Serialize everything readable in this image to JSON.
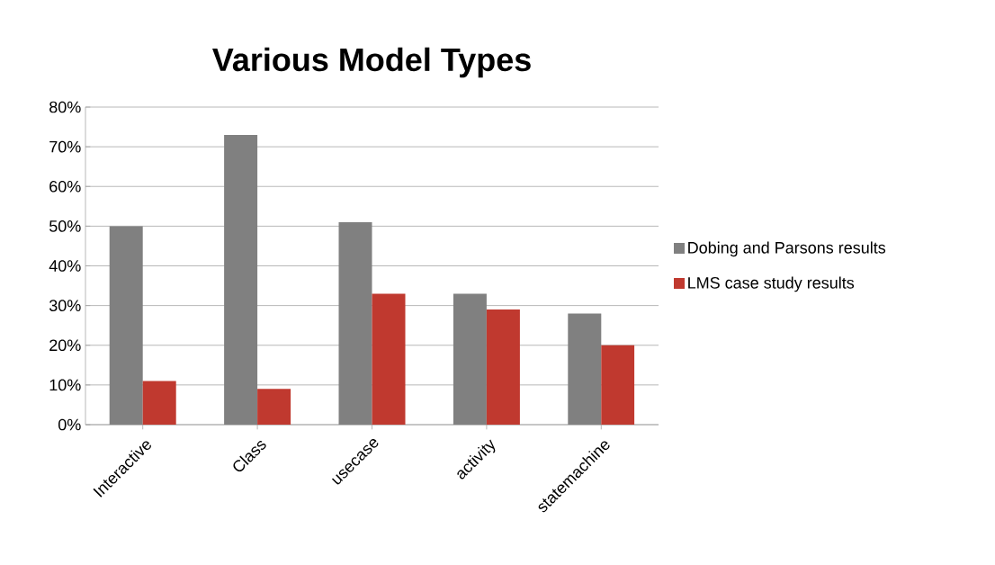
{
  "chart_data": {
    "type": "bar",
    "title": "Various Model Types",
    "categories": [
      "Interactive",
      "Class",
      "usecase",
      "activity",
      "statemachine"
    ],
    "series": [
      {
        "name": "Dobing and Parsons results",
        "color": "#808080",
        "values": [
          50,
          73,
          51,
          33,
          28
        ]
      },
      {
        "name": "LMS case study results",
        "color": "#c0392f",
        "values": [
          11,
          9,
          33,
          29,
          20
        ]
      }
    ],
    "ylim": [
      0,
      80
    ],
    "yticks": [
      {
        "value": 0,
        "label": "0%"
      },
      {
        "value": 10,
        "label": "10%"
      },
      {
        "value": 20,
        "label": "20%"
      },
      {
        "value": 30,
        "label": "30%"
      },
      {
        "value": 40,
        "label": "40%"
      },
      {
        "value": 50,
        "label": "50%"
      },
      {
        "value": 60,
        "label": "60%"
      },
      {
        "value": 70,
        "label": "70%"
      },
      {
        "value": 80,
        "label": "80%"
      }
    ],
    "grid": "y",
    "legend": "right"
  }
}
